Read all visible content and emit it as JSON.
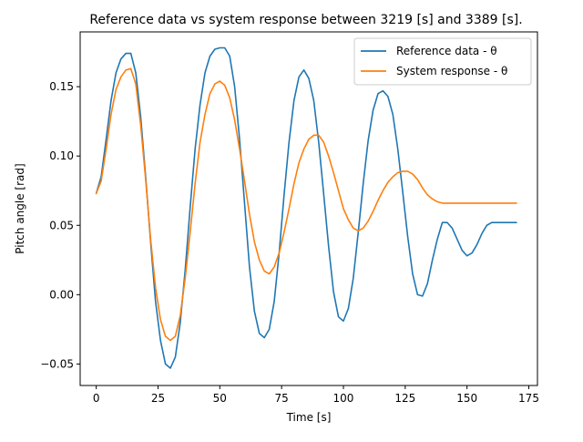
{
  "chart_data": {
    "type": "line",
    "title": "Reference data vs system response between 3219 [s] and 3389 [s].",
    "xlabel": "Time [s]",
    "ylabel": "Pitch angle [rad]",
    "xlim": [
      -6.5,
      178.5
    ],
    "ylim": [
      -0.0655,
      0.1895
    ],
    "xticks": [
      0,
      25,
      50,
      75,
      100,
      125,
      150,
      175
    ],
    "xtick_labels": [
      "0",
      "25",
      "50",
      "75",
      "100",
      "125",
      "150",
      "175"
    ],
    "yticks": [
      -0.05,
      0.0,
      0.05,
      0.1,
      0.15
    ],
    "ytick_labels": [
      "−0.05",
      "0.00",
      "0.05",
      "0.10",
      "0.15"
    ],
    "grid": false,
    "legend_position": "top-right",
    "series": [
      {
        "name": "Reference data - θ",
        "color": "#1f77b4",
        "x": [
          0,
          2,
          4,
          6,
          8,
          10,
          12,
          14,
          16,
          18,
          20,
          22,
          24,
          26,
          28,
          30,
          32,
          34,
          36,
          38,
          40,
          42,
          44,
          46,
          48,
          50,
          52,
          54,
          56,
          58,
          60,
          62,
          64,
          66,
          68,
          70,
          72,
          74,
          76,
          78,
          80,
          82,
          84,
          86,
          88,
          90,
          92,
          94,
          96,
          98,
          100,
          102,
          104,
          106,
          108,
          110,
          112,
          114,
          116,
          118,
          120,
          122,
          124,
          126,
          128,
          130,
          132,
          134,
          136,
          138,
          140,
          142,
          144,
          146,
          148,
          150,
          152,
          154,
          156,
          158,
          160,
          162,
          164,
          166,
          168,
          170
        ],
        "y": [
          0.073,
          0.085,
          0.112,
          0.14,
          0.16,
          0.17,
          0.174,
          0.174,
          0.16,
          0.128,
          0.085,
          0.038,
          -0.005,
          -0.033,
          -0.05,
          -0.053,
          -0.045,
          -0.02,
          0.018,
          0.063,
          0.105,
          0.137,
          0.16,
          0.172,
          0.177,
          0.178,
          0.178,
          0.172,
          0.15,
          0.112,
          0.066,
          0.02,
          -0.012,
          -0.028,
          -0.031,
          -0.025,
          -0.005,
          0.03,
          0.072,
          0.11,
          0.14,
          0.157,
          0.162,
          0.156,
          0.14,
          0.11,
          0.073,
          0.035,
          0.002,
          -0.016,
          -0.019,
          -0.01,
          0.012,
          0.045,
          0.08,
          0.111,
          0.133,
          0.145,
          0.147,
          0.143,
          0.13,
          0.105,
          0.074,
          0.042,
          0.015,
          0.0,
          -0.001,
          0.008,
          0.025,
          0.04,
          0.052,
          0.052,
          0.048,
          0.04,
          0.032,
          0.028,
          0.03,
          0.036,
          0.044,
          0.05,
          0.052,
          0.052,
          0.052,
          0.052,
          0.052,
          0.052
        ]
      },
      {
        "name": "System response - θ",
        "color": "#ff7f0e",
        "x": [
          0,
          2,
          4,
          6,
          8,
          10,
          12,
          14,
          16,
          18,
          20,
          22,
          24,
          26,
          28,
          30,
          32,
          34,
          36,
          38,
          40,
          42,
          44,
          46,
          48,
          50,
          52,
          54,
          56,
          58,
          60,
          62,
          64,
          66,
          68,
          70,
          72,
          74,
          76,
          78,
          80,
          82,
          84,
          86,
          88,
          90,
          92,
          94,
          96,
          98,
          100,
          102,
          104,
          106,
          108,
          110,
          112,
          114,
          116,
          118,
          120,
          122,
          124,
          126,
          128,
          130,
          132,
          134,
          136,
          138,
          140,
          142,
          144,
          146,
          148,
          150,
          152,
          154,
          156,
          158,
          160,
          162,
          164,
          166,
          168,
          170
        ],
        "y": [
          0.073,
          0.082,
          0.105,
          0.13,
          0.148,
          0.157,
          0.162,
          0.163,
          0.152,
          0.122,
          0.083,
          0.04,
          0.005,
          -0.018,
          -0.03,
          -0.033,
          -0.03,
          -0.015,
          0.012,
          0.045,
          0.08,
          0.11,
          0.13,
          0.145,
          0.152,
          0.154,
          0.151,
          0.142,
          0.126,
          0.105,
          0.082,
          0.058,
          0.038,
          0.025,
          0.017,
          0.015,
          0.02,
          0.03,
          0.045,
          0.062,
          0.08,
          0.095,
          0.105,
          0.112,
          0.115,
          0.115,
          0.11,
          0.1,
          0.088,
          0.075,
          0.062,
          0.054,
          0.048,
          0.046,
          0.048,
          0.053,
          0.06,
          0.068,
          0.075,
          0.081,
          0.085,
          0.088,
          0.089,
          0.089,
          0.087,
          0.083,
          0.077,
          0.072,
          0.069,
          0.067,
          0.066,
          0.066,
          0.066,
          0.066,
          0.066,
          0.066,
          0.066,
          0.066,
          0.066,
          0.066,
          0.066,
          0.066,
          0.066,
          0.066,
          0.066,
          0.066
        ]
      }
    ]
  }
}
